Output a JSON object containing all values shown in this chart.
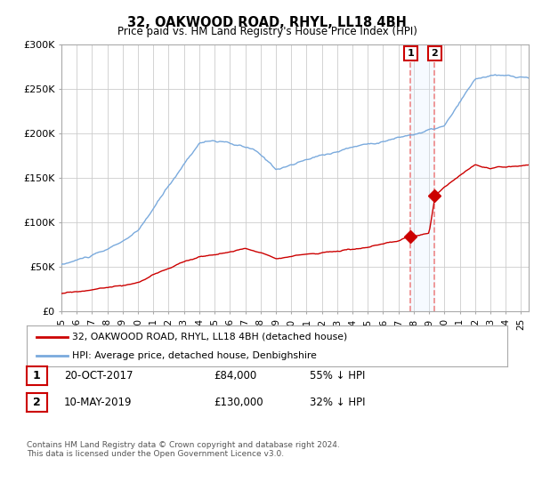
{
  "title": "32, OAKWOOD ROAD, RHYL, LL18 4BH",
  "subtitle": "Price paid vs. HM Land Registry's House Price Index (HPI)",
  "hpi_color": "#7aaadd",
  "price_color": "#cc0000",
  "vline_color": "#ee8888",
  "span_color": "#ddeeff",
  "point1_date": 2017.8,
  "point1_value": 84000,
  "point2_date": 2019.37,
  "point2_value": 130000,
  "point1_label": "1",
  "point2_label": "2",
  "ylim": [
    0,
    300000
  ],
  "xlim": [
    1995,
    2025.5
  ],
  "yticks": [
    0,
    50000,
    100000,
    150000,
    200000,
    250000,
    300000
  ],
  "ytick_labels": [
    "£0",
    "£50K",
    "£100K",
    "£150K",
    "£200K",
    "£250K",
    "£300K"
  ],
  "legend_line1": "32, OAKWOOD ROAD, RHYL, LL18 4BH (detached house)",
  "legend_line2": "HPI: Average price, detached house, Denbighshire",
  "table_row1": [
    "1",
    "20-OCT-2017",
    "£84,000",
    "55% ↓ HPI"
  ],
  "table_row2": [
    "2",
    "10-MAY-2019",
    "£130,000",
    "32% ↓ HPI"
  ],
  "footer": "Contains HM Land Registry data © Crown copyright and database right 2024.\nThis data is licensed under the Open Government Licence v3.0.",
  "background_color": "#ffffff",
  "grid_color": "#cccccc"
}
